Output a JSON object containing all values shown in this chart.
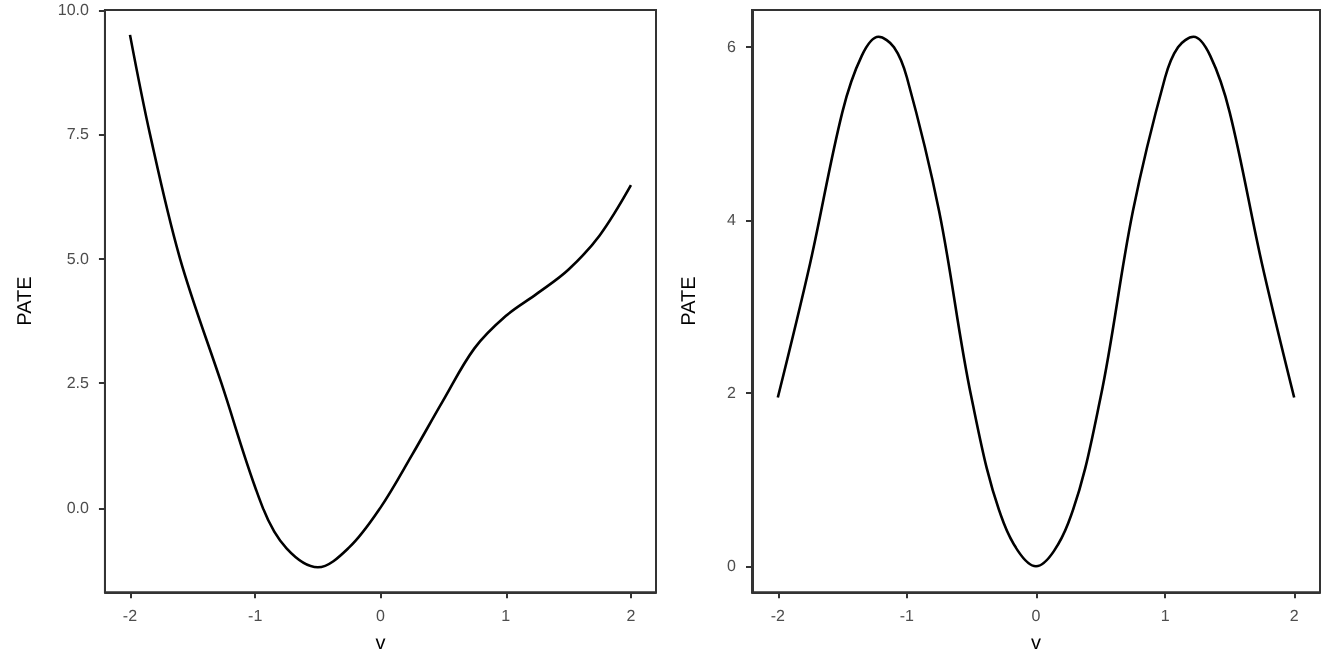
{
  "chart_data": [
    {
      "type": "line",
      "xlabel": "v",
      "ylabel": "PATE",
      "xlim": [
        -2.2,
        2.2
      ],
      "xticks": [
        -2,
        -1,
        0,
        1,
        2
      ],
      "ylim": [
        -1.7,
        10.0
      ],
      "yticks": [
        {
          "value": 0,
          "label": "0.0"
        },
        {
          "value": 2.5,
          "label": "2.5"
        },
        {
          "value": 5,
          "label": "5.0"
        },
        {
          "value": 7.5,
          "label": "7.5"
        },
        {
          "value": 10,
          "label": "10.0"
        }
      ],
      "grid": false,
      "marker": "none",
      "line_style": "solid",
      "series": [
        {
          "color": "#000000",
          "x": [
            -2,
            -1.84,
            -1.6,
            -1.27,
            -0.94,
            -0.75,
            -0.5,
            -0.25,
            0,
            0.25,
            0.5,
            0.75,
            1,
            1.25,
            1.5,
            1.75,
            2
          ],
          "values": [
            9.5,
            7.5,
            5.0,
            2.5,
            0,
            -0.82,
            -1.2,
            -0.8,
            0,
            1.05,
            2.15,
            3.2,
            3.85,
            4.3,
            4.78,
            5.47,
            6.48
          ]
        }
      ]
    },
    {
      "type": "line",
      "xlabel": "v",
      "ylabel": "PATE",
      "xlim": [
        -2.2,
        2.2
      ],
      "xticks": [
        -2,
        -1,
        0,
        1,
        2
      ],
      "ylim": [
        -0.3,
        6.43
      ],
      "yticks": [
        0,
        2,
        4,
        6
      ],
      "grid": false,
      "marker": "none",
      "line_style": "solid",
      "series": [
        {
          "color": "#000000",
          "x": [
            -2,
            -1.75,
            -1.5,
            -1.35,
            -1.22,
            -1.1,
            -1,
            -0.75,
            -0.5,
            -0.25,
            0,
            0.25,
            0.5,
            0.75,
            1,
            1.1,
            1.22,
            1.35,
            1.5,
            1.75,
            2
          ],
          "values": [
            1.95,
            3.5,
            5.25,
            5.9,
            6.12,
            6.0,
            5.65,
            4.1,
            1.95,
            0.5,
            0,
            0.5,
            1.95,
            4.1,
            5.65,
            6.0,
            6.12,
            5.9,
            5.25,
            3.5,
            1.95
          ]
        }
      ]
    }
  ]
}
